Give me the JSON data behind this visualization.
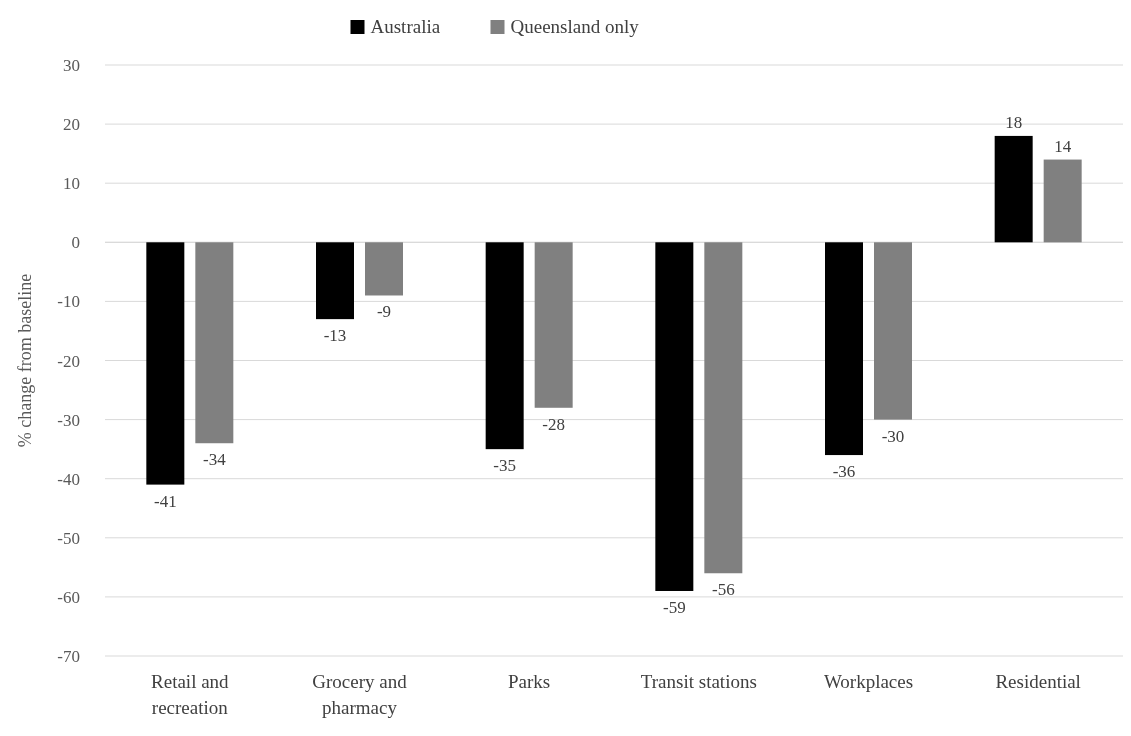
{
  "chart_data": {
    "type": "bar",
    "ylabel": "% change from baseline",
    "categories": [
      "Retail and recreation",
      "Grocery and pharmacy",
      "Parks",
      "Transit stations",
      "Workplaces",
      "Residential"
    ],
    "series": [
      {
        "name": "Australia",
        "color": "#000000",
        "values": [
          -41,
          -13,
          -35,
          -59,
          -36,
          18
        ]
      },
      {
        "name": "Queensland only",
        "color": "#808080",
        "values": [
          -34,
          -9,
          -28,
          -56,
          -30,
          14
        ]
      }
    ],
    "ylim": [
      -70,
      30
    ],
    "yticks": [
      -70,
      -60,
      -50,
      -40,
      -30,
      -20,
      -10,
      0,
      10,
      20,
      30
    ],
    "grid": "y",
    "legend": "top",
    "data_labels": true
  }
}
